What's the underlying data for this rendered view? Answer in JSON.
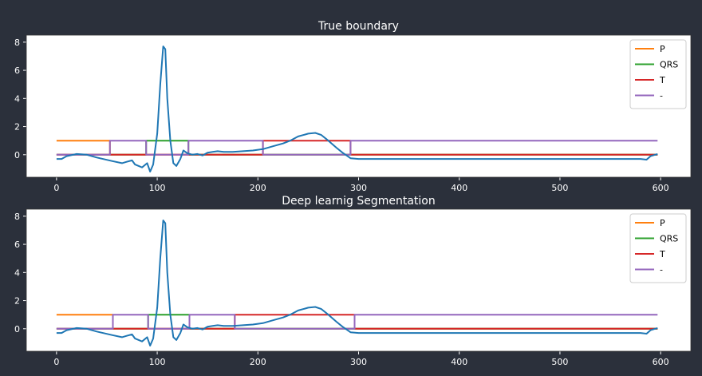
{
  "chart_data": [
    {
      "type": "line",
      "title": "True boundary",
      "xlabel": "",
      "ylabel": "",
      "xlim": [
        -30,
        630
      ],
      "ylim": [
        -1.6,
        8.5
      ],
      "xticks": [
        0,
        100,
        200,
        300,
        400,
        500,
        600
      ],
      "yticks": [
        0,
        2,
        4,
        6,
        8
      ],
      "grid": false,
      "legend": "top-right",
      "series": [
        {
          "name": "",
          "color": "#1f77b4",
          "points": [
            [
              0,
              -0.3
            ],
            [
              5,
              -0.3
            ],
            [
              10,
              -0.1
            ],
            [
              20,
              0.05
            ],
            [
              30,
              0.0
            ],
            [
              40,
              -0.2
            ],
            [
              55,
              -0.45
            ],
            [
              65,
              -0.6
            ],
            [
              70,
              -0.5
            ],
            [
              75,
              -0.4
            ],
            [
              78,
              -0.7
            ],
            [
              85,
              -0.9
            ],
            [
              90,
              -0.6
            ],
            [
              93,
              -1.2
            ],
            [
              96,
              -0.7
            ],
            [
              100,
              1.5
            ],
            [
              103,
              5.0
            ],
            [
              106,
              7.7
            ],
            [
              108,
              7.5
            ],
            [
              110,
              4.0
            ],
            [
              113,
              1.0
            ],
            [
              116,
              -0.6
            ],
            [
              119,
              -0.8
            ],
            [
              123,
              -0.3
            ],
            [
              126,
              0.3
            ],
            [
              130,
              0.1
            ],
            [
              135,
              0.0
            ],
            [
              140,
              0.05
            ],
            [
              145,
              -0.05
            ],
            [
              150,
              0.15
            ],
            [
              155,
              0.2
            ],
            [
              160,
              0.25
            ],
            [
              166,
              0.2
            ],
            [
              175,
              0.2
            ],
            [
              185,
              0.25
            ],
            [
              195,
              0.3
            ],
            [
              205,
              0.4
            ],
            [
              215,
              0.6
            ],
            [
              225,
              0.8
            ],
            [
              232,
              1.0
            ],
            [
              240,
              1.3
            ],
            [
              250,
              1.5
            ],
            [
              257,
              1.55
            ],
            [
              263,
              1.4
            ],
            [
              270,
              1.0
            ],
            [
              278,
              0.5
            ],
            [
              284,
              0.15
            ],
            [
              288,
              -0.05
            ],
            [
              292,
              -0.25
            ],
            [
              300,
              -0.3
            ],
            [
              400,
              -0.3
            ],
            [
              500,
              -0.3
            ],
            [
              580,
              -0.3
            ],
            [
              586,
              -0.35
            ],
            [
              590,
              -0.1
            ],
            [
              597,
              0.05
            ]
          ]
        },
        {
          "name": "P",
          "color": "#ff7f0e",
          "points": [
            [
              0,
              1
            ],
            [
              53,
              1
            ],
            [
              53,
              0
            ],
            [
              597,
              0
            ]
          ]
        },
        {
          "name": "QRS",
          "color": "#2ca02c",
          "points": [
            [
              0,
              0
            ],
            [
              89,
              0
            ],
            [
              89,
              1
            ],
            [
              131,
              1
            ],
            [
              131,
              0
            ],
            [
              597,
              0
            ]
          ]
        },
        {
          "name": "T",
          "color": "#d62728",
          "points": [
            [
              0,
              0
            ],
            [
              205,
              0
            ],
            [
              205,
              1
            ],
            [
              292,
              1
            ],
            [
              292,
              0
            ],
            [
              597,
              0
            ]
          ]
        },
        {
          "name": "-",
          "color": "#9467bd",
          "points": [
            [
              0,
              0
            ],
            [
              53,
              0
            ],
            [
              53,
              1
            ],
            [
              89,
              1
            ],
            [
              89,
              0
            ],
            [
              131,
              0
            ],
            [
              131,
              1
            ],
            [
              205,
              1
            ],
            [
              205,
              0
            ],
            [
              292,
              0
            ],
            [
              292,
              1
            ],
            [
              597,
              1
            ]
          ]
        }
      ]
    },
    {
      "type": "line",
      "title": "Deep learnig Segmentation",
      "xlabel": "",
      "ylabel": "",
      "xlim": [
        -30,
        630
      ],
      "ylim": [
        -1.6,
        8.5
      ],
      "xticks": [
        0,
        100,
        200,
        300,
        400,
        500,
        600
      ],
      "yticks": [
        0,
        2,
        4,
        6,
        8
      ],
      "grid": false,
      "legend": "top-right",
      "series": [
        {
          "name": "",
          "color": "#1f77b4",
          "points": [
            [
              0,
              -0.3
            ],
            [
              5,
              -0.3
            ],
            [
              10,
              -0.1
            ],
            [
              20,
              0.05
            ],
            [
              30,
              0.0
            ],
            [
              40,
              -0.2
            ],
            [
              55,
              -0.45
            ],
            [
              65,
              -0.6
            ],
            [
              70,
              -0.5
            ],
            [
              75,
              -0.4
            ],
            [
              78,
              -0.7
            ],
            [
              85,
              -0.9
            ],
            [
              90,
              -0.6
            ],
            [
              93,
              -1.2
            ],
            [
              96,
              -0.7
            ],
            [
              100,
              1.5
            ],
            [
              103,
              5.0
            ],
            [
              106,
              7.7
            ],
            [
              108,
              7.5
            ],
            [
              110,
              4.0
            ],
            [
              113,
              1.0
            ],
            [
              116,
              -0.6
            ],
            [
              119,
              -0.8
            ],
            [
              123,
              -0.3
            ],
            [
              126,
              0.3
            ],
            [
              130,
              0.1
            ],
            [
              135,
              0.0
            ],
            [
              140,
              0.05
            ],
            [
              145,
              -0.05
            ],
            [
              150,
              0.15
            ],
            [
              155,
              0.2
            ],
            [
              160,
              0.25
            ],
            [
              166,
              0.2
            ],
            [
              175,
              0.2
            ],
            [
              185,
              0.25
            ],
            [
              195,
              0.3
            ],
            [
              205,
              0.4
            ],
            [
              215,
              0.6
            ],
            [
              225,
              0.8
            ],
            [
              232,
              1.0
            ],
            [
              240,
              1.3
            ],
            [
              250,
              1.5
            ],
            [
              257,
              1.55
            ],
            [
              263,
              1.4
            ],
            [
              270,
              1.0
            ],
            [
              278,
              0.5
            ],
            [
              284,
              0.15
            ],
            [
              288,
              -0.05
            ],
            [
              292,
              -0.25
            ],
            [
              300,
              -0.3
            ],
            [
              400,
              -0.3
            ],
            [
              500,
              -0.3
            ],
            [
              580,
              -0.3
            ],
            [
              586,
              -0.35
            ],
            [
              590,
              -0.1
            ],
            [
              597,
              0.05
            ]
          ]
        },
        {
          "name": "P",
          "color": "#ff7f0e",
          "points": [
            [
              0,
              1
            ],
            [
              56,
              1
            ],
            [
              56,
              0
            ],
            [
              597,
              0
            ]
          ]
        },
        {
          "name": "QRS",
          "color": "#2ca02c",
          "points": [
            [
              0,
              0
            ],
            [
              91,
              0
            ],
            [
              91,
              1
            ],
            [
              132,
              1
            ],
            [
              132,
              0
            ],
            [
              597,
              0
            ]
          ]
        },
        {
          "name": "T",
          "color": "#d62728",
          "points": [
            [
              0,
              0
            ],
            [
              177,
              0
            ],
            [
              177,
              1
            ],
            [
              296,
              1
            ],
            [
              296,
              0
            ],
            [
              597,
              0
            ]
          ]
        },
        {
          "name": "-",
          "color": "#9467bd",
          "points": [
            [
              0,
              0
            ],
            [
              56,
              0
            ],
            [
              56,
              1
            ],
            [
              91,
              1
            ],
            [
              91,
              0
            ],
            [
              132,
              0
            ],
            [
              132,
              1
            ],
            [
              177,
              1
            ],
            [
              177,
              0
            ],
            [
              296,
              0
            ],
            [
              296,
              1
            ],
            [
              597,
              1
            ]
          ]
        }
      ]
    }
  ]
}
